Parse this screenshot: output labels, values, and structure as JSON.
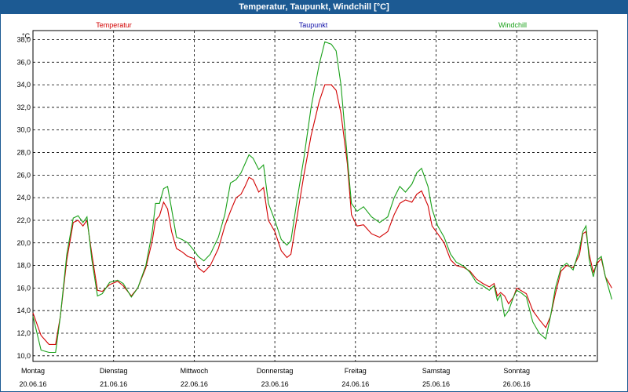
{
  "window": {
    "title": "Temperatur, Taupunkt, Windchill [°C]"
  },
  "legend": [
    {
      "name": "Temperatur",
      "color": "#d20000"
    },
    {
      "name": "Taupunkt",
      "color": "#1010a8"
    },
    {
      "name": "Windchill",
      "color": "#18a018"
    }
  ],
  "chart_data": {
    "type": "line",
    "title": "Temperatur, Taupunkt, Windchill [°C]",
    "ylabel": "°C",
    "xlabel": "",
    "ylim": [
      9.5,
      38.8
    ],
    "xlim": [
      0,
      7
    ],
    "grid": true,
    "yticks": [
      "10,0",
      "12,0",
      "14,0",
      "16,0",
      "18,0",
      "20,0",
      "22,0",
      "24,0",
      "26,0",
      "28,0",
      "30,0",
      "32,0",
      "34,0",
      "36,0",
      "38,0"
    ],
    "days": [
      {
        "day": "Montag",
        "date": "20.06.16"
      },
      {
        "day": "Dienstag",
        "date": "21.06.16"
      },
      {
        "day": "Mittwoch",
        "date": "22.06.16"
      },
      {
        "day": "Donnerstag",
        "date": "23.06.16"
      },
      {
        "day": "Freitag",
        "date": "24.06.16"
      },
      {
        "day": "Samstag",
        "date": "25.06.16"
      },
      {
        "day": "Sonntag",
        "date": "26.06.16"
      }
    ],
    "series": [
      {
        "name": "Temperatur",
        "color": "#d20000",
        "points": [
          [
            0,
            13.8
          ],
          [
            0.1,
            11.8
          ],
          [
            0.2,
            11.0
          ],
          [
            0.28,
            11.0
          ],
          [
            0.34,
            13.5
          ],
          [
            0.42,
            18.5
          ],
          [
            0.5,
            21.8
          ],
          [
            0.56,
            22.0
          ],
          [
            0.62,
            21.5
          ],
          [
            0.67,
            22.0
          ],
          [
            0.73,
            19.0
          ],
          [
            0.8,
            15.8
          ],
          [
            0.86,
            15.7
          ],
          [
            0.95,
            16.3
          ],
          [
            1.05,
            16.6
          ],
          [
            1.12,
            16.2
          ],
          [
            1.22,
            15.3
          ],
          [
            1.3,
            16.0
          ],
          [
            1.4,
            17.8
          ],
          [
            1.48,
            20.2
          ],
          [
            1.52,
            22.0
          ],
          [
            1.57,
            22.4
          ],
          [
            1.62,
            23.6
          ],
          [
            1.67,
            23.0
          ],
          [
            1.72,
            21.0
          ],
          [
            1.78,
            19.5
          ],
          [
            1.85,
            19.2
          ],
          [
            1.92,
            18.8
          ],
          [
            2.0,
            18.6
          ],
          [
            2.05,
            17.8
          ],
          [
            2.12,
            17.4
          ],
          [
            2.2,
            18.0
          ],
          [
            2.3,
            19.5
          ],
          [
            2.38,
            21.5
          ],
          [
            2.45,
            22.8
          ],
          [
            2.52,
            24.0
          ],
          [
            2.58,
            24.3
          ],
          [
            2.63,
            25.0
          ],
          [
            2.68,
            25.8
          ],
          [
            2.73,
            25.6
          ],
          [
            2.8,
            24.5
          ],
          [
            2.86,
            24.9
          ],
          [
            2.92,
            22.0
          ],
          [
            3.0,
            21.0
          ],
          [
            3.08,
            19.3
          ],
          [
            3.15,
            18.7
          ],
          [
            3.2,
            19.0
          ],
          [
            3.28,
            22.5
          ],
          [
            3.36,
            26.0
          ],
          [
            3.45,
            29.5
          ],
          [
            3.55,
            32.5
          ],
          [
            3.62,
            34.0
          ],
          [
            3.7,
            34.0
          ],
          [
            3.76,
            33.5
          ],
          [
            3.82,
            31.5
          ],
          [
            3.9,
            27.0
          ],
          [
            3.95,
            22.5
          ],
          [
            4.02,
            21.5
          ],
          [
            4.1,
            21.6
          ],
          [
            4.2,
            20.8
          ],
          [
            4.3,
            20.5
          ],
          [
            4.4,
            21.0
          ],
          [
            4.48,
            22.5
          ],
          [
            4.55,
            23.5
          ],
          [
            4.62,
            23.8
          ],
          [
            4.7,
            23.6
          ],
          [
            4.76,
            24.3
          ],
          [
            4.82,
            24.6
          ],
          [
            4.9,
            23.3
          ],
          [
            4.95,
            21.5
          ],
          [
            5.02,
            20.8
          ],
          [
            5.1,
            20.0
          ],
          [
            5.18,
            18.5
          ],
          [
            5.25,
            18.0
          ],
          [
            5.35,
            17.8
          ],
          [
            5.42,
            17.5
          ],
          [
            5.5,
            16.8
          ],
          [
            5.58,
            16.4
          ],
          [
            5.66,
            16.1
          ],
          [
            5.72,
            16.4
          ],
          [
            5.76,
            15.3
          ],
          [
            5.8,
            15.6
          ],
          [
            5.85,
            15.3
          ],
          [
            5.9,
            14.6
          ],
          [
            5.96,
            15.2
          ],
          [
            6.0,
            16.0
          ],
          [
            6.05,
            15.8
          ],
          [
            6.12,
            15.5
          ],
          [
            6.2,
            14.0
          ],
          [
            6.28,
            13.2
          ],
          [
            6.36,
            12.5
          ],
          [
            6.42,
            13.5
          ],
          [
            6.48,
            15.5
          ],
          [
            6.55,
            17.5
          ],
          [
            6.62,
            18.0
          ],
          [
            6.7,
            17.8
          ],
          [
            6.78,
            19.0
          ],
          [
            6.82,
            20.8
          ],
          [
            6.86,
            21.0
          ],
          [
            6.9,
            19.0
          ],
          [
            6.95,
            17.4
          ],
          [
            7.0,
            18.2
          ],
          [
            7.05,
            18.6
          ],
          [
            7.1,
            17.0
          ],
          [
            7.18,
            16.0
          ]
        ]
      },
      {
        "name": "Windchill",
        "color": "#18a018",
        "points": [
          [
            0,
            13.5
          ],
          [
            0.1,
            10.5
          ],
          [
            0.2,
            10.3
          ],
          [
            0.28,
            10.3
          ],
          [
            0.34,
            13.5
          ],
          [
            0.42,
            19.0
          ],
          [
            0.5,
            22.2
          ],
          [
            0.56,
            22.4
          ],
          [
            0.62,
            21.8
          ],
          [
            0.67,
            22.3
          ],
          [
            0.73,
            18.5
          ],
          [
            0.8,
            15.3
          ],
          [
            0.86,
            15.5
          ],
          [
            0.95,
            16.5
          ],
          [
            1.05,
            16.7
          ],
          [
            1.12,
            16.4
          ],
          [
            1.22,
            15.2
          ],
          [
            1.3,
            16.0
          ],
          [
            1.4,
            18.0
          ],
          [
            1.48,
            21.0
          ],
          [
            1.52,
            23.5
          ],
          [
            1.57,
            23.5
          ],
          [
            1.62,
            24.8
          ],
          [
            1.67,
            25.0
          ],
          [
            1.72,
            23.0
          ],
          [
            1.78,
            20.5
          ],
          [
            1.85,
            20.3
          ],
          [
            1.92,
            20.0
          ],
          [
            2.0,
            19.3
          ],
          [
            2.05,
            18.8
          ],
          [
            2.12,
            18.4
          ],
          [
            2.2,
            19.0
          ],
          [
            2.3,
            20.5
          ],
          [
            2.38,
            22.5
          ],
          [
            2.45,
            25.3
          ],
          [
            2.52,
            25.6
          ],
          [
            2.58,
            26.2
          ],
          [
            2.63,
            27.0
          ],
          [
            2.68,
            27.8
          ],
          [
            2.73,
            27.5
          ],
          [
            2.8,
            26.5
          ],
          [
            2.86,
            26.9
          ],
          [
            2.92,
            23.5
          ],
          [
            3.0,
            22.0
          ],
          [
            3.08,
            20.3
          ],
          [
            3.15,
            19.8
          ],
          [
            3.2,
            20.2
          ],
          [
            3.28,
            24.0
          ],
          [
            3.36,
            27.5
          ],
          [
            3.45,
            32.0
          ],
          [
            3.55,
            35.8
          ],
          [
            3.62,
            37.8
          ],
          [
            3.7,
            37.6
          ],
          [
            3.76,
            37.0
          ],
          [
            3.82,
            34.0
          ],
          [
            3.9,
            27.5
          ],
          [
            3.95,
            23.5
          ],
          [
            4.02,
            22.8
          ],
          [
            4.1,
            23.2
          ],
          [
            4.2,
            22.3
          ],
          [
            4.3,
            21.8
          ],
          [
            4.4,
            22.3
          ],
          [
            4.48,
            24.0
          ],
          [
            4.55,
            25.0
          ],
          [
            4.62,
            24.5
          ],
          [
            4.7,
            25.2
          ],
          [
            4.76,
            26.2
          ],
          [
            4.82,
            26.6
          ],
          [
            4.9,
            25.0
          ],
          [
            4.95,
            23.0
          ],
          [
            5.02,
            21.5
          ],
          [
            5.1,
            20.5
          ],
          [
            5.18,
            19.0
          ],
          [
            5.25,
            18.3
          ],
          [
            5.35,
            17.9
          ],
          [
            5.42,
            17.4
          ],
          [
            5.5,
            16.5
          ],
          [
            5.58,
            16.2
          ],
          [
            5.66,
            15.8
          ],
          [
            5.72,
            16.2
          ],
          [
            5.76,
            14.9
          ],
          [
            5.8,
            15.4
          ],
          [
            5.85,
            13.5
          ],
          [
            5.9,
            14.0
          ],
          [
            5.96,
            15.2
          ],
          [
            6.0,
            15.8
          ],
          [
            6.05,
            15.6
          ],
          [
            6.12,
            15.2
          ],
          [
            6.2,
            13.0
          ],
          [
            6.28,
            12.0
          ],
          [
            6.36,
            11.5
          ],
          [
            6.42,
            13.5
          ],
          [
            6.48,
            16.0
          ],
          [
            6.55,
            17.8
          ],
          [
            6.62,
            18.2
          ],
          [
            6.7,
            17.6
          ],
          [
            6.78,
            19.5
          ],
          [
            6.82,
            21.0
          ],
          [
            6.86,
            21.5
          ],
          [
            6.9,
            18.5
          ],
          [
            6.95,
            17.0
          ],
          [
            7.0,
            18.5
          ],
          [
            7.05,
            18.8
          ],
          [
            7.1,
            17.0
          ],
          [
            7.18,
            15.0
          ]
        ]
      }
    ]
  }
}
